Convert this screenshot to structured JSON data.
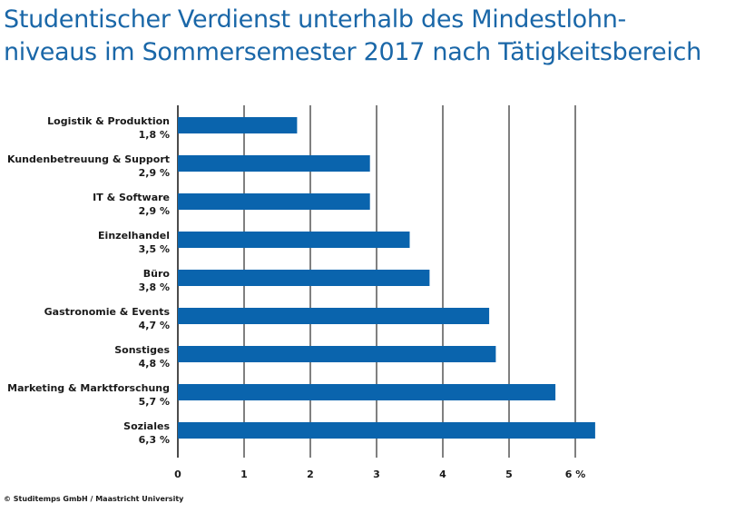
{
  "title_lines": [
    "Studentischer Verdienst unterhalb des Mindestlohn-",
    "niveaus im Sommersemester 2017 nach Tätigkeitsbereich"
  ],
  "source": "© Studitemps GmbH / Maastricht University",
  "colors": {
    "bar": "#0a64ad",
    "title": "#1a67a8",
    "grid": "#000000"
  },
  "chart_data": {
    "type": "bar",
    "orientation": "horizontal",
    "title": "Studentischer Verdienst unterhalb des Mindestlohn-niveaus im Sommersemester 2017 nach Tätigkeitsbereich",
    "categories": [
      "Logistik & Produktion",
      "Kundenbetreuung & Support",
      "IT & Software",
      "Einzelhandel",
      "Büro",
      "Gastronomie & Events",
      "Sonstiges",
      "Marketing & Marktforschung",
      "Soziales"
    ],
    "values": [
      1.8,
      2.9,
      2.9,
      3.5,
      3.8,
      4.7,
      4.8,
      5.7,
      6.3
    ],
    "value_labels": [
      "1,8 %",
      "2,9 %",
      "2,9 %",
      "3,5 %",
      "3,8 %",
      "4,7 %",
      "4,8 %",
      "5,7 %",
      "6,3 %"
    ],
    "xlim": [
      0,
      6
    ],
    "xticks": [
      0,
      1,
      2,
      3,
      4,
      5,
      6
    ],
    "xtick_labels": [
      "0",
      "1",
      "2",
      "3",
      "4",
      "5",
      "6 %"
    ],
    "grid": true,
    "xlabel": "",
    "ylabel": ""
  }
}
